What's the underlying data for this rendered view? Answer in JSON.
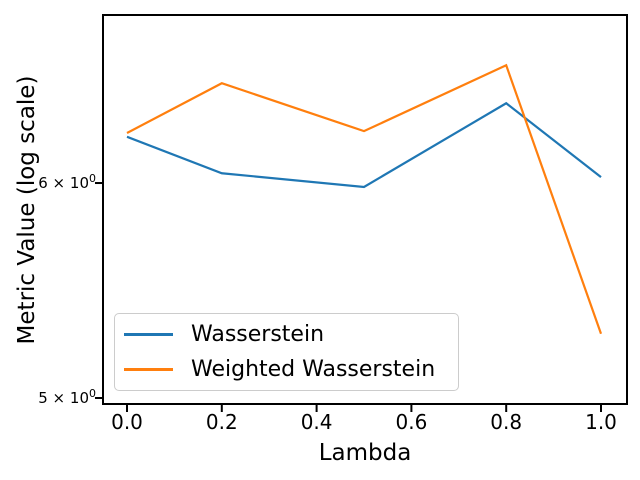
{
  "figure": {
    "background": "#ffffff",
    "border_color": "#000000"
  },
  "chart_data": {
    "type": "line",
    "title": "",
    "xlabel": "Lambda",
    "ylabel": "Metric Value (log scale)",
    "y_scale": "log",
    "grid": false,
    "x": [
      0.0,
      0.2,
      0.5,
      0.8,
      1.0
    ],
    "series": [
      {
        "name": "Wasserstein",
        "color": "#1f77b4",
        "values": [
          6.24,
          6.05,
          5.98,
          6.42,
          6.03
        ]
      },
      {
        "name": "Weighted Wasserstein",
        "color": "#ff7f0e",
        "values": [
          6.26,
          6.53,
          6.27,
          6.63,
          5.28
        ]
      }
    ],
    "x_ticks": [
      0.0,
      0.2,
      0.4,
      0.6,
      0.8,
      1.0
    ],
    "x_tick_labels": [
      "0.0",
      "0.2",
      "0.4",
      "0.6",
      "0.8",
      "1.0"
    ],
    "y_ticks": [
      {
        "value": 6,
        "prefix": "6 × 10",
        "exp": "0"
      },
      {
        "value": 5,
        "prefix": "5 × 10",
        "exp": "0"
      }
    ],
    "xlim": [
      -0.05,
      1.05
    ],
    "ylim": [
      4.97,
      6.92
    ],
    "legend": {
      "position": "lower left"
    }
  }
}
